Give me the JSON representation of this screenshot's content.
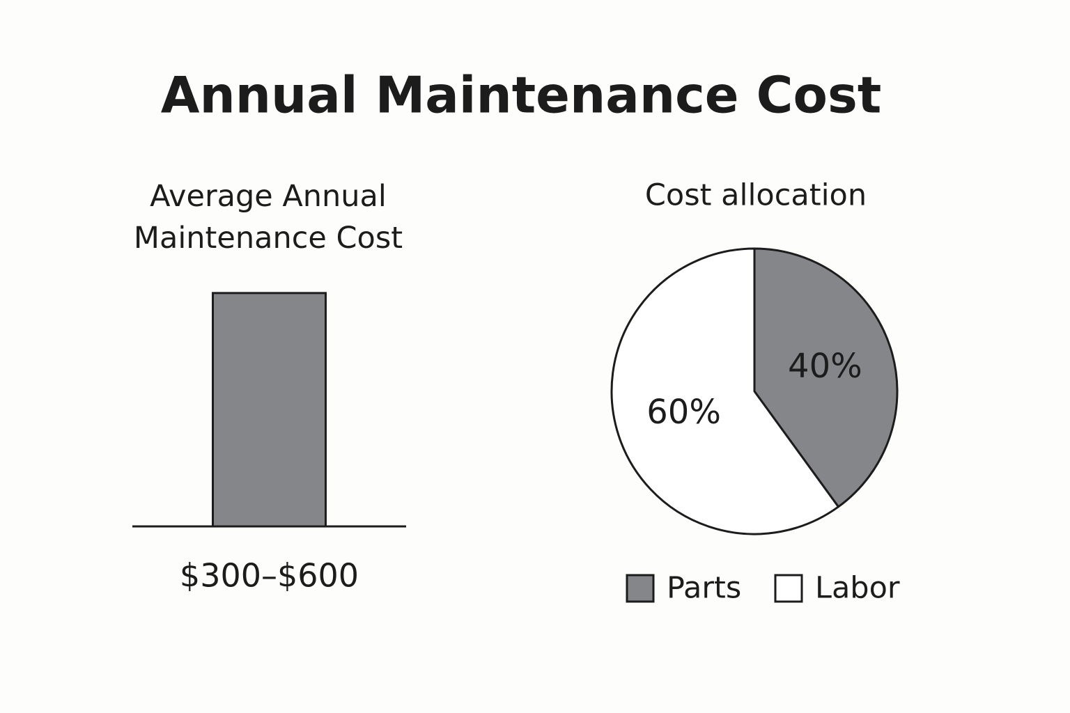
{
  "title": "Annual Maintenance Cost",
  "chart_data": [
    {
      "type": "bar",
      "title": "Average Annual Maintenance Cost",
      "categories": [
        "$300–$600"
      ],
      "values": [
        600
      ],
      "color": "#85868a",
      "ylim": [
        0,
        700
      ]
    },
    {
      "type": "pie",
      "title": "Cost allocation",
      "categories": [
        "Parts",
        "Labor"
      ],
      "values": [
        40,
        60
      ],
      "value_labels": [
        "40%",
        "60%"
      ],
      "colors": [
        "#85868a",
        "#ffffff"
      ]
    }
  ]
}
